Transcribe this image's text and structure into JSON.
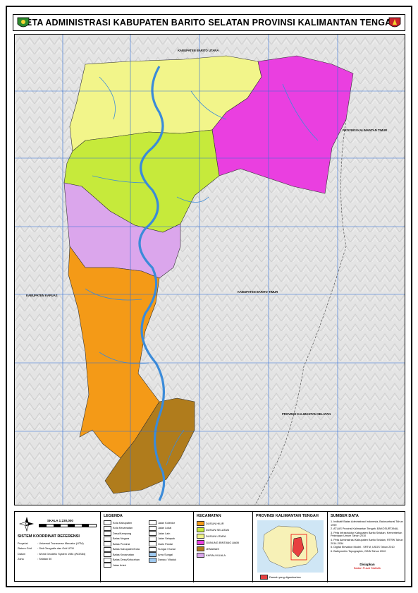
{
  "title": "PETA ADMINISTRASI KABUPATEN BARITO SELATAN PROVINSI KALIMANTAN TENGAH",
  "neighbors": {
    "north": "KABUPATEN BARITO UTARA",
    "east_upper": "PROVINSI KALIMANTAN TIMUR",
    "east_mid": "KABUPATEN BARITO TIMUR",
    "west": "KABUPATEN KAPUAS",
    "south_east": "PROVINSI KALIMANTAN SELATAN"
  },
  "scale": {
    "label": "SKALA 1:230,000"
  },
  "coord_system": {
    "heading": "SISTEM KOORDINAT REFERENSI",
    "rows": [
      [
        "Proyeksi",
        ": Universal Transverse Mercator (UTM)"
      ],
      [
        "Sistem Grid",
        ": Grid Geografis dan Grid UTM"
      ],
      [
        "Datum",
        ": World Geodetic System 1984 (WGS84)"
      ],
      [
        "Zona",
        ": Selatan 50"
      ]
    ]
  },
  "legend": {
    "heading": "LEGENDA",
    "items_left": [
      {
        "label": "Kota Kabupaten",
        "color": "#ffffff"
      },
      {
        "label": "Kota Kecamatan",
        "color": "#ffffff"
      },
      {
        "label": "Desa/Kampung",
        "color": "#ffffff"
      },
      {
        "label": "Batas Negara",
        "color": "#ffffff"
      },
      {
        "label": "Batas Provinsi",
        "color": "#ffffff"
      },
      {
        "label": "Batas Kabupaten/Kota",
        "color": "#ffffff"
      },
      {
        "label": "Batas Kecamatan",
        "color": "#ffffff"
      },
      {
        "label": "Batas Desa/Kelurahan",
        "color": "#ffffff"
      },
      {
        "label": "Jalan Arteri",
        "color": "#ffffff"
      }
    ],
    "items_right": [
      {
        "label": "Jalan Kolektor",
        "color": "#ffffff"
      },
      {
        "label": "Jalan Lokal",
        "color": "#ffffff"
      },
      {
        "label": "Jalan Lain",
        "color": "#ffffff"
      },
      {
        "label": "Jalan Setapak",
        "color": "#ffffff"
      },
      {
        "label": "Garis Pantai",
        "color": "#ffffff"
      },
      {
        "label": "Sungai / Kanal",
        "color": "#ffffff"
      },
      {
        "label": "Area Sungai",
        "color": "#9ec9f0"
      },
      {
        "label": "Danau / Waduk",
        "color": "#9ec9f0"
      }
    ]
  },
  "kecamatan": {
    "heading": "KECAMATAN",
    "items": [
      {
        "label": "DUSUN HILIR",
        "color": "#f49a17"
      },
      {
        "label": "DUSUN SELATAN",
        "color": "#c6ea3b"
      },
      {
        "label": "DUSUN UTARA",
        "color": "#f2f58a"
      },
      {
        "label": "GUNUNG BINTANG AWAI",
        "color": "#ea3fe0"
      },
      {
        "label": "JENAMAS",
        "color": "#b07c1c"
      },
      {
        "label": "KARAU KUALA",
        "color": "#dba6ec"
      }
    ]
  },
  "inset": {
    "heading": "PROVINSI KALIMANTAN TENGAH",
    "caption": "Daerah yang digambarkan"
  },
  "sources": {
    "heading": "SUMBER DATA",
    "items": [
      "1. Indikatif Batas Administrasi Indonesia, Bakosurtanal Tahun 1999",
      "2. ATLAS Provinsi Kalimantan Tengah, BAKOSURTANAL",
      "3. Peta Infrastruktur Kabupaten Barito Selatan, Kementerian Pekerjaan Umum Tahun 2010",
      "4. Peta Administrasi Kabupaten Barito Selatan, RTRW Tahun 2014-2034",
      "5. Digital Elevation Model - SRTM, USGS Tahun 2010",
      "6. Bathymetric Topographic, GINN Tahun 2010"
    ],
    "credit_heading": "Disiapkan",
    "credit_sub": "Badan Pusat Statistik"
  }
}
